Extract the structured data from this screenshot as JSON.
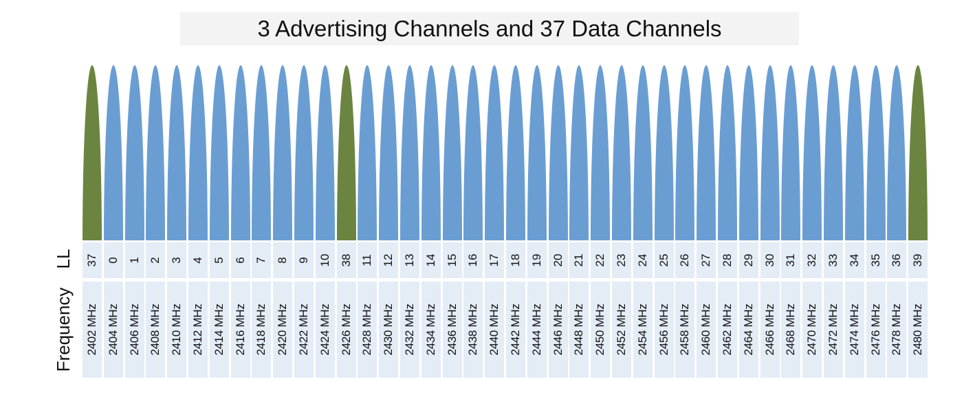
{
  "title": "3 Advertising Channels and 37 Data Channels",
  "row_labels": {
    "ll": "LL",
    "frequency": "Frequency"
  },
  "colors": {
    "advertising": "#6b8540",
    "data": "#6a9ed3",
    "cell_bg": "#e4ecf6"
  },
  "channels": [
    {
      "ll": "37",
      "freq": "2402 MHz",
      "type": "advertising"
    },
    {
      "ll": "0",
      "freq": "2404 MHz",
      "type": "data"
    },
    {
      "ll": "1",
      "freq": "2406 MHz",
      "type": "data"
    },
    {
      "ll": "2",
      "freq": "2408 MHz",
      "type": "data"
    },
    {
      "ll": "3",
      "freq": "2410 MHz",
      "type": "data"
    },
    {
      "ll": "4",
      "freq": "2412 MHz",
      "type": "data"
    },
    {
      "ll": "5",
      "freq": "2414 MHz",
      "type": "data"
    },
    {
      "ll": "6",
      "freq": "2416 MHz",
      "type": "data"
    },
    {
      "ll": "7",
      "freq": "2418 MHz",
      "type": "data"
    },
    {
      "ll": "8",
      "freq": "2420 MHz",
      "type": "data"
    },
    {
      "ll": "9",
      "freq": "2422 MHz",
      "type": "data"
    },
    {
      "ll": "10",
      "freq": "2424 MHz",
      "type": "data"
    },
    {
      "ll": "38",
      "freq": "2426 MHz",
      "type": "advertising"
    },
    {
      "ll": "11",
      "freq": "2428 MHz",
      "type": "data"
    },
    {
      "ll": "12",
      "freq": "2430 MHz",
      "type": "data"
    },
    {
      "ll": "13",
      "freq": "2432 MHz",
      "type": "data"
    },
    {
      "ll": "14",
      "freq": "2434 MHz",
      "type": "data"
    },
    {
      "ll": "15",
      "freq": "2436 MHz",
      "type": "data"
    },
    {
      "ll": "16",
      "freq": "2438 MHz",
      "type": "data"
    },
    {
      "ll": "17",
      "freq": "2440 MHz",
      "type": "data"
    },
    {
      "ll": "18",
      "freq": "2442 MHz",
      "type": "data"
    },
    {
      "ll": "19",
      "freq": "2444 MHz",
      "type": "data"
    },
    {
      "ll": "20",
      "freq": "2446 MHz",
      "type": "data"
    },
    {
      "ll": "21",
      "freq": "2448 MHz",
      "type": "data"
    },
    {
      "ll": "22",
      "freq": "2450 MHz",
      "type": "data"
    },
    {
      "ll": "23",
      "freq": "2452 MHz",
      "type": "data"
    },
    {
      "ll": "24",
      "freq": "2454 MHz",
      "type": "data"
    },
    {
      "ll": "25",
      "freq": "2456 MHz",
      "type": "data"
    },
    {
      "ll": "26",
      "freq": "2458 MHz",
      "type": "data"
    },
    {
      "ll": "27",
      "freq": "2460 MHz",
      "type": "data"
    },
    {
      "ll": "28",
      "freq": "2462 MHz",
      "type": "data"
    },
    {
      "ll": "29",
      "freq": "2464 MHz",
      "type": "data"
    },
    {
      "ll": "30",
      "freq": "2466 MHz",
      "type": "data"
    },
    {
      "ll": "31",
      "freq": "2468 MHz",
      "type": "data"
    },
    {
      "ll": "32",
      "freq": "2470 MHz",
      "type": "data"
    },
    {
      "ll": "33",
      "freq": "2472 MHz",
      "type": "data"
    },
    {
      "ll": "34",
      "freq": "2474 MHz",
      "type": "data"
    },
    {
      "ll": "35",
      "freq": "2476 MHz",
      "type": "data"
    },
    {
      "ll": "36",
      "freq": "2478 MHz",
      "type": "data"
    },
    {
      "ll": "39",
      "freq": "2480 MHz",
      "type": "advertising"
    }
  ]
}
